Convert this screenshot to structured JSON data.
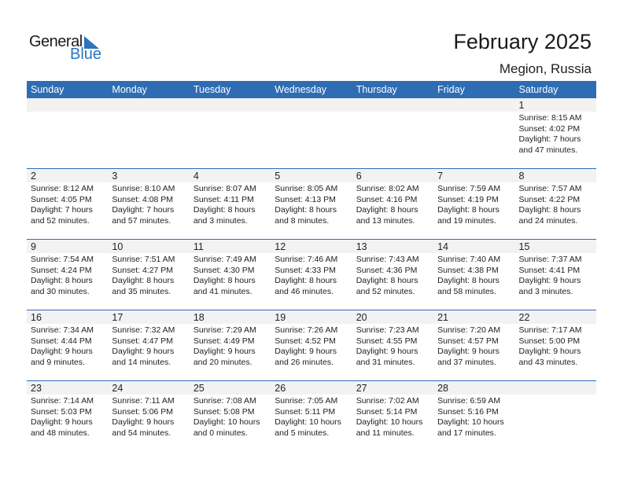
{
  "logo": {
    "line1": "General",
    "line2": "Blue"
  },
  "title": "February 2025",
  "location": "Megion, Russia",
  "colors": {
    "header": "#2e6db3",
    "logo_blue": "#2a74c0",
    "date_strip": "#f2f2f2"
  },
  "weekdays": [
    "Sunday",
    "Monday",
    "Tuesday",
    "Wednesday",
    "Thursday",
    "Friday",
    "Saturday"
  ],
  "weeks": [
    [
      null,
      null,
      null,
      null,
      null,
      null,
      {
        "day": "1",
        "sunrise": "Sunrise: 8:15 AM",
        "sunset": "Sunset: 4:02 PM",
        "daylight1": "Daylight: 7 hours",
        "daylight2": "and 47 minutes."
      }
    ],
    [
      {
        "day": "2",
        "sunrise": "Sunrise: 8:12 AM",
        "sunset": "Sunset: 4:05 PM",
        "daylight1": "Daylight: 7 hours",
        "daylight2": "and 52 minutes."
      },
      {
        "day": "3",
        "sunrise": "Sunrise: 8:10 AM",
        "sunset": "Sunset: 4:08 PM",
        "daylight1": "Daylight: 7 hours",
        "daylight2": "and 57 minutes."
      },
      {
        "day": "4",
        "sunrise": "Sunrise: 8:07 AM",
        "sunset": "Sunset: 4:11 PM",
        "daylight1": "Daylight: 8 hours",
        "daylight2": "and 3 minutes."
      },
      {
        "day": "5",
        "sunrise": "Sunrise: 8:05 AM",
        "sunset": "Sunset: 4:13 PM",
        "daylight1": "Daylight: 8 hours",
        "daylight2": "and 8 minutes."
      },
      {
        "day": "6",
        "sunrise": "Sunrise: 8:02 AM",
        "sunset": "Sunset: 4:16 PM",
        "daylight1": "Daylight: 8 hours",
        "daylight2": "and 13 minutes."
      },
      {
        "day": "7",
        "sunrise": "Sunrise: 7:59 AM",
        "sunset": "Sunset: 4:19 PM",
        "daylight1": "Daylight: 8 hours",
        "daylight2": "and 19 minutes."
      },
      {
        "day": "8",
        "sunrise": "Sunrise: 7:57 AM",
        "sunset": "Sunset: 4:22 PM",
        "daylight1": "Daylight: 8 hours",
        "daylight2": "and 24 minutes."
      }
    ],
    [
      {
        "day": "9",
        "sunrise": "Sunrise: 7:54 AM",
        "sunset": "Sunset: 4:24 PM",
        "daylight1": "Daylight: 8 hours",
        "daylight2": "and 30 minutes."
      },
      {
        "day": "10",
        "sunrise": "Sunrise: 7:51 AM",
        "sunset": "Sunset: 4:27 PM",
        "daylight1": "Daylight: 8 hours",
        "daylight2": "and 35 minutes."
      },
      {
        "day": "11",
        "sunrise": "Sunrise: 7:49 AM",
        "sunset": "Sunset: 4:30 PM",
        "daylight1": "Daylight: 8 hours",
        "daylight2": "and 41 minutes."
      },
      {
        "day": "12",
        "sunrise": "Sunrise: 7:46 AM",
        "sunset": "Sunset: 4:33 PM",
        "daylight1": "Daylight: 8 hours",
        "daylight2": "and 46 minutes."
      },
      {
        "day": "13",
        "sunrise": "Sunrise: 7:43 AM",
        "sunset": "Sunset: 4:36 PM",
        "daylight1": "Daylight: 8 hours",
        "daylight2": "and 52 minutes."
      },
      {
        "day": "14",
        "sunrise": "Sunrise: 7:40 AM",
        "sunset": "Sunset: 4:38 PM",
        "daylight1": "Daylight: 8 hours",
        "daylight2": "and 58 minutes."
      },
      {
        "day": "15",
        "sunrise": "Sunrise: 7:37 AM",
        "sunset": "Sunset: 4:41 PM",
        "daylight1": "Daylight: 9 hours",
        "daylight2": "and 3 minutes."
      }
    ],
    [
      {
        "day": "16",
        "sunrise": "Sunrise: 7:34 AM",
        "sunset": "Sunset: 4:44 PM",
        "daylight1": "Daylight: 9 hours",
        "daylight2": "and 9 minutes."
      },
      {
        "day": "17",
        "sunrise": "Sunrise: 7:32 AM",
        "sunset": "Sunset: 4:47 PM",
        "daylight1": "Daylight: 9 hours",
        "daylight2": "and 14 minutes."
      },
      {
        "day": "18",
        "sunrise": "Sunrise: 7:29 AM",
        "sunset": "Sunset: 4:49 PM",
        "daylight1": "Daylight: 9 hours",
        "daylight2": "and 20 minutes."
      },
      {
        "day": "19",
        "sunrise": "Sunrise: 7:26 AM",
        "sunset": "Sunset: 4:52 PM",
        "daylight1": "Daylight: 9 hours",
        "daylight2": "and 26 minutes."
      },
      {
        "day": "20",
        "sunrise": "Sunrise: 7:23 AM",
        "sunset": "Sunset: 4:55 PM",
        "daylight1": "Daylight: 9 hours",
        "daylight2": "and 31 minutes."
      },
      {
        "day": "21",
        "sunrise": "Sunrise: 7:20 AM",
        "sunset": "Sunset: 4:57 PM",
        "daylight1": "Daylight: 9 hours",
        "daylight2": "and 37 minutes."
      },
      {
        "day": "22",
        "sunrise": "Sunrise: 7:17 AM",
        "sunset": "Sunset: 5:00 PM",
        "daylight1": "Daylight: 9 hours",
        "daylight2": "and 43 minutes."
      }
    ],
    [
      {
        "day": "23",
        "sunrise": "Sunrise: 7:14 AM",
        "sunset": "Sunset: 5:03 PM",
        "daylight1": "Daylight: 9 hours",
        "daylight2": "and 48 minutes."
      },
      {
        "day": "24",
        "sunrise": "Sunrise: 7:11 AM",
        "sunset": "Sunset: 5:06 PM",
        "daylight1": "Daylight: 9 hours",
        "daylight2": "and 54 minutes."
      },
      {
        "day": "25",
        "sunrise": "Sunrise: 7:08 AM",
        "sunset": "Sunset: 5:08 PM",
        "daylight1": "Daylight: 10 hours",
        "daylight2": "and 0 minutes."
      },
      {
        "day": "26",
        "sunrise": "Sunrise: 7:05 AM",
        "sunset": "Sunset: 5:11 PM",
        "daylight1": "Daylight: 10 hours",
        "daylight2": "and 5 minutes."
      },
      {
        "day": "27",
        "sunrise": "Sunrise: 7:02 AM",
        "sunset": "Sunset: 5:14 PM",
        "daylight1": "Daylight: 10 hours",
        "daylight2": "and 11 minutes."
      },
      {
        "day": "28",
        "sunrise": "Sunrise: 6:59 AM",
        "sunset": "Sunset: 5:16 PM",
        "daylight1": "Daylight: 10 hours",
        "daylight2": "and 17 minutes."
      },
      null
    ]
  ]
}
